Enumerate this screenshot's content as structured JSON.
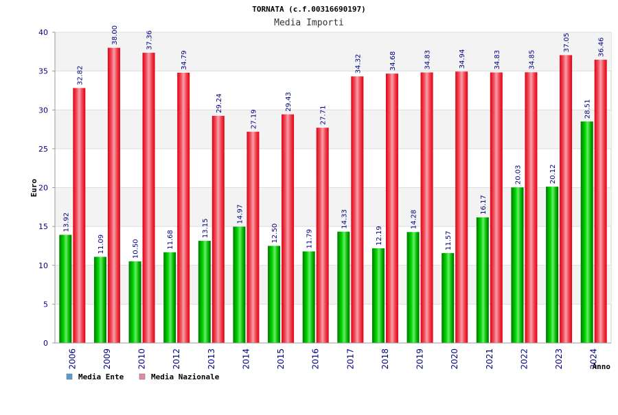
{
  "chart_data": {
    "type": "bar",
    "title": "TORNATA (c.f.00316690197)",
    "subtitle": "Media Importi",
    "xlabel": "Anno",
    "ylabel": "Euro",
    "ylim": [
      0,
      40
    ],
    "yticks": [
      "0",
      "5",
      "10",
      "15",
      "20",
      "25",
      "30",
      "35",
      "40"
    ],
    "grid": true,
    "legend_position": "bottom-left",
    "categories": [
      "2006",
      "2009",
      "2010",
      "2012",
      "2013",
      "2014",
      "2015",
      "2016",
      "2017",
      "2018",
      "2019",
      "2020",
      "2021",
      "2022",
      "2023",
      "2024"
    ],
    "series": [
      {
        "name": "Media Ente",
        "color": "#00b000",
        "legend_color": "#5b9bd5",
        "values": [
          13.92,
          11.09,
          10.5,
          11.68,
          13.15,
          14.97,
          12.5,
          11.79,
          14.33,
          12.19,
          14.28,
          11.57,
          16.17,
          20.03,
          20.12,
          28.51
        ],
        "labels": [
          "13.92",
          "11.09",
          "10.50",
          "11.68",
          "13.15",
          "14.97",
          "12.50",
          "11.79",
          "14.33",
          "12.19",
          "14.28",
          "11.57",
          "16.17",
          "20.03",
          "20.12",
          "28.51"
        ]
      },
      {
        "name": "Media Nazionale",
        "color": "#e00010",
        "legend_color": "#e58aa6",
        "values": [
          32.82,
          38.0,
          37.36,
          34.79,
          29.24,
          27.19,
          29.43,
          27.71,
          34.32,
          34.68,
          34.83,
          34.94,
          34.83,
          34.85,
          37.05,
          36.46
        ],
        "labels": [
          "32.82",
          "38.00",
          "37.36",
          "34.79",
          "29.24",
          "27.19",
          "29.43",
          "27.71",
          "34.32",
          "34.68",
          "34.83",
          "34.94",
          "34.83",
          "34.85",
          "37.05",
          "36.46"
        ]
      }
    ]
  }
}
